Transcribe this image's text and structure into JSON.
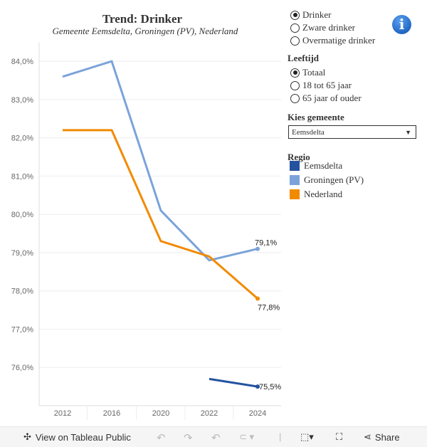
{
  "header": {
    "title": "Trend:  Drinker",
    "subtitle": "Gemeente  Eemsdelta,  Groningen  (PV),  Nederland"
  },
  "measure_options": [
    {
      "label": "Drinker",
      "selected": true
    },
    {
      "label": "Zware  drinker",
      "selected": false
    },
    {
      "label": "Overmatige  drinker",
      "selected": false
    }
  ],
  "age": {
    "label": "Leeftijd",
    "options": [
      {
        "label": "Totaal",
        "selected": true
      },
      {
        "label": "18  tot  65  jaar",
        "selected": false
      },
      {
        "label": "65  jaar  of  ouder",
        "selected": false
      }
    ]
  },
  "municipality": {
    "label": "Kies  gemeente",
    "value": "Eemsdelta"
  },
  "legend": {
    "title": "Regio",
    "items": [
      {
        "label": "Eemsdelta",
        "color": "#24529f"
      },
      {
        "label": "Groningen  (PV)",
        "color": "#7ba3d9"
      },
      {
        "label": "Nederland",
        "color": "#f28a00"
      }
    ]
  },
  "info_icon": "info-icon",
  "chart_data": {
    "type": "line",
    "categories": [
      "2012",
      "2016",
      "2020",
      "2022",
      "2024"
    ],
    "yticks": [
      "76,0%",
      "77,0%",
      "78,0%",
      "79,0%",
      "80,0%",
      "81,0%",
      "82,0%",
      "83,0%",
      "84,0%"
    ],
    "ylim": [
      75.0,
      84.3
    ],
    "grid": true,
    "series": [
      {
        "name": "Groningen  (PV)",
        "color": "#7ba3d9",
        "values": [
          83.6,
          84.0,
          80.1,
          78.8,
          79.1
        ],
        "end_label": "79,1%"
      },
      {
        "name": "Nederland",
        "color": "#f28a00",
        "values": [
          82.2,
          82.2,
          79.3,
          78.9,
          77.8
        ],
        "end_label": "77,8%"
      },
      {
        "name": "Eemsdelta",
        "color": "#24529f",
        "values": [
          null,
          null,
          null,
          75.7,
          75.5
        ],
        "end_label": "75,5%"
      }
    ]
  },
  "toolbar": {
    "view_label": "View on Tableau Public",
    "share_label": "Share"
  }
}
